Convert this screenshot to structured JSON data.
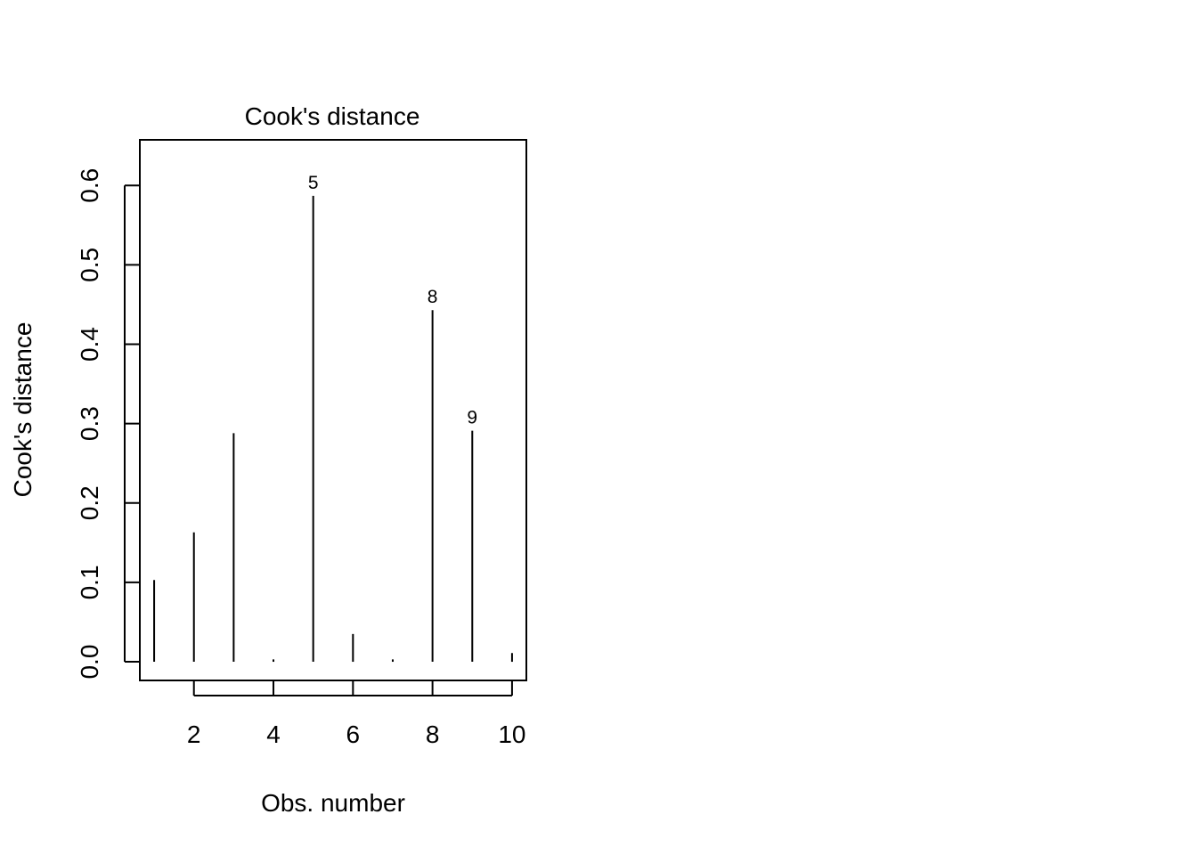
{
  "chart_data": {
    "type": "bar",
    "title": "Cook's distance",
    "xlabel": "Obs. number",
    "ylabel": "Cook's distance",
    "x": [
      1,
      2,
      3,
      4,
      5,
      6,
      7,
      8,
      9,
      10
    ],
    "values": [
      0.103,
      0.163,
      0.288,
      0.003,
      0.587,
      0.035,
      0.003,
      0.443,
      0.291,
      0.011
    ],
    "xlim": [
      0.64,
      10.36
    ],
    "ylim": [
      -0.0235,
      0.6575
    ],
    "x_ticks": [
      2,
      4,
      6,
      8,
      10
    ],
    "x_tick_labels": [
      "2",
      "4",
      "6",
      "8",
      "10"
    ],
    "y_ticks": [
      0.0,
      0.1,
      0.2,
      0.3,
      0.4,
      0.5,
      0.6
    ],
    "y_tick_labels": [
      "0.0",
      "0.1",
      "0.2",
      "0.3",
      "0.4",
      "0.5",
      "0.6"
    ],
    "annotations": [
      {
        "x": 5,
        "text": "5"
      },
      {
        "x": 8,
        "text": "8"
      },
      {
        "x": 9,
        "text": "9"
      }
    ],
    "grid": false,
    "legend": "none",
    "color": "#000000"
  }
}
